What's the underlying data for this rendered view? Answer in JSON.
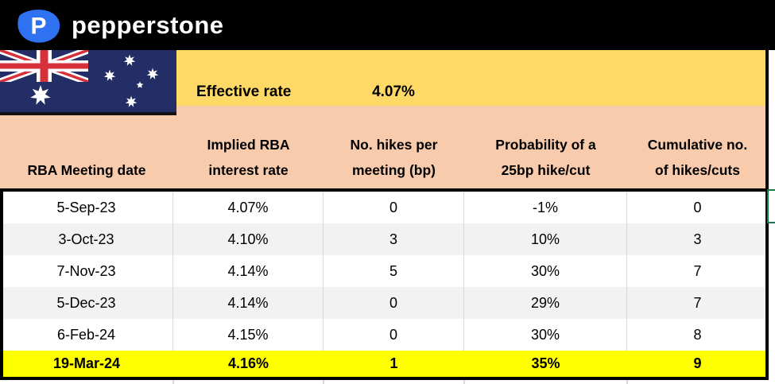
{
  "brand": {
    "name": "pepperstone"
  },
  "banner": {
    "effective_rate_label": "Effective rate",
    "effective_rate_value": "4.07%"
  },
  "ui": {
    "flag": "australian-flag",
    "header_lines": [
      [
        "RBA Meeting date"
      ],
      [
        "Implied RBA",
        "interest rate"
      ],
      [
        "No. hikes per",
        "meeting (bp)"
      ],
      [
        "Probability of a",
        "25bp hike/cut"
      ],
      [
        "Cumulative no.",
        "of hikes/cuts"
      ]
    ]
  },
  "colors": {
    "top_bar": "#000000",
    "banner_gold": "#FFD966",
    "header_peach": "#F8CBAD",
    "highlight_yellow": "#FFFF00",
    "alt_row_gray": "#F2F2F2",
    "flag_navy": "#232E66",
    "flag_red": "#D7303B",
    "logo_blue": "#2E72F2",
    "selection_green": "#157A45"
  },
  "chart_data": {
    "type": "table",
    "columns": [
      "RBA Meeting date",
      "Implied RBA interest rate",
      "No. hikes per meeting (bp)",
      "Probability of a 25bp hike/cut",
      "Cumulative no. of hikes/cuts"
    ],
    "rows": [
      [
        "5-Sep-23",
        "4.07%",
        "0",
        "-1%",
        "0"
      ],
      [
        "3-Oct-23",
        "4.10%",
        "3",
        "10%",
        "3"
      ],
      [
        "7-Nov-23",
        "4.14%",
        "5",
        "30%",
        "7"
      ],
      [
        "5-Dec-23",
        "4.14%",
        "0",
        "29%",
        "7"
      ],
      [
        "6-Feb-24",
        "4.15%",
        "0",
        "30%",
        "8"
      ],
      [
        "19-Mar-24",
        "4.16%",
        "1",
        "35%",
        "9"
      ]
    ],
    "highlighted_row_index": 5,
    "effective_rate": "4.07%"
  }
}
